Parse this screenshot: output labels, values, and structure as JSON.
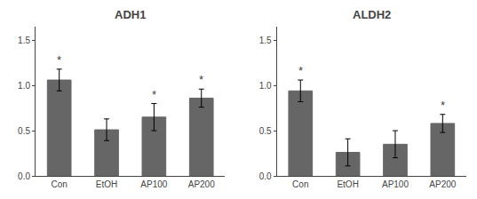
{
  "chart_data": [
    {
      "type": "bar",
      "title": "ADH1",
      "categories": [
        "Con",
        "EtOH",
        "AP100",
        "AP200"
      ],
      "values": [
        1.06,
        0.51,
        0.65,
        0.86
      ],
      "errors": [
        0.12,
        0.12,
        0.15,
        0.1
      ],
      "color": "#666666",
      "ylim": [
        0,
        1.65
      ],
      "yticks": [
        {
          "value": 0.0,
          "label": "0.0"
        },
        0.5,
        {
          "value": 1.0,
          "label": "1.0"
        },
        1.5
      ],
      "grid": false,
      "annotations": [
        {
          "x": "Con",
          "text": "*"
        },
        {
          "x": "AP100",
          "text": "*"
        },
        {
          "x": "AP200",
          "text": "*"
        }
      ]
    },
    {
      "type": "bar",
      "title": "ALDH2",
      "categories": [
        "Con",
        "EtOH",
        "AP100",
        "AP200"
      ],
      "values": [
        0.94,
        0.26,
        0.35,
        0.58
      ],
      "errors": [
        0.12,
        0.15,
        0.15,
        0.1
      ],
      "color": "#666666",
      "ylim": [
        0,
        1.65
      ],
      "yticks": [
        {
          "value": 0.0,
          "label": "0.0"
        },
        0.5,
        {
          "value": 1.0,
          "label": "1.0"
        },
        1.5
      ],
      "grid": false,
      "annotations": [
        {
          "x": "Con",
          "text": "*"
        },
        {
          "x": "AP200",
          "text": "*"
        }
      ]
    }
  ]
}
